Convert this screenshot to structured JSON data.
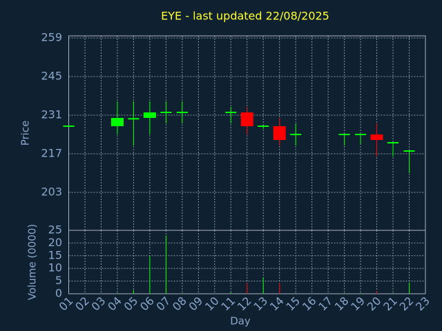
{
  "chart_data": [
    {
      "type": "candlestick",
      "title": "EYE - last updated 22/08/2025",
      "ylabel": "Price",
      "ylim": [
        189.25,
        259.75
      ],
      "yticks": [
        259,
        245,
        231,
        217,
        203
      ],
      "grid": true,
      "up_color": "#00ff00",
      "down_color": "#ff0000",
      "open": [
        227,
        null,
        null,
        227,
        229.7,
        230,
        232,
        232,
        null,
        null,
        232,
        232,
        227,
        227,
        224,
        null,
        null,
        224,
        224,
        224,
        221,
        218,
        null
      ],
      "high": [
        227,
        null,
        null,
        236,
        236,
        236,
        236,
        236,
        null,
        null,
        234,
        234,
        227,
        230,
        228,
        null,
        null,
        224,
        224,
        228,
        221,
        218,
        null
      ],
      "low": [
        227,
        null,
        null,
        224,
        220,
        224,
        228,
        228,
        null,
        null,
        228,
        224,
        226,
        220,
        220,
        null,
        null,
        220,
        220.5,
        216,
        216,
        210,
        null
      ],
      "close": [
        227,
        null,
        null,
        230,
        229.7,
        232,
        232,
        232,
        null,
        null,
        232,
        227,
        227,
        222,
        224,
        null,
        null,
        224,
        224,
        222,
        221,
        218,
        null
      ]
    },
    {
      "type": "bar",
      "ylabel": "Volume (0000)",
      "xlabel": "Day",
      "ylim": [
        0,
        25
      ],
      "yticks": [
        0,
        5,
        10,
        15,
        20,
        25
      ],
      "grid": true,
      "categories": [
        "01",
        "02",
        "03",
        "04",
        "05",
        "06",
        "07",
        "08",
        "09",
        "10",
        "11",
        "12",
        "13",
        "14",
        "15",
        "16",
        "17",
        "18",
        "19",
        "20",
        "21",
        "22",
        "23"
      ],
      "values": [
        0,
        null,
        null,
        0.3,
        1.5,
        15,
        23,
        0.3,
        null,
        null,
        0.5,
        4.3,
        6.5,
        4.3,
        0.3,
        null,
        null,
        0.3,
        0.3,
        1,
        0.3,
        4.5,
        null
      ],
      "colors": [
        "#00ff00",
        null,
        null,
        "#00ff00",
        "#00ff00",
        "#00ff00",
        "#00ff00",
        "#00ff00",
        null,
        null,
        "#00ff00",
        "#ff0000",
        "#00ff00",
        "#ff0000",
        "#00ff00",
        null,
        null,
        "#00ff00",
        "#00ff00",
        "#ff0000",
        "#00ff00",
        "#00ff00",
        null
      ]
    }
  ]
}
